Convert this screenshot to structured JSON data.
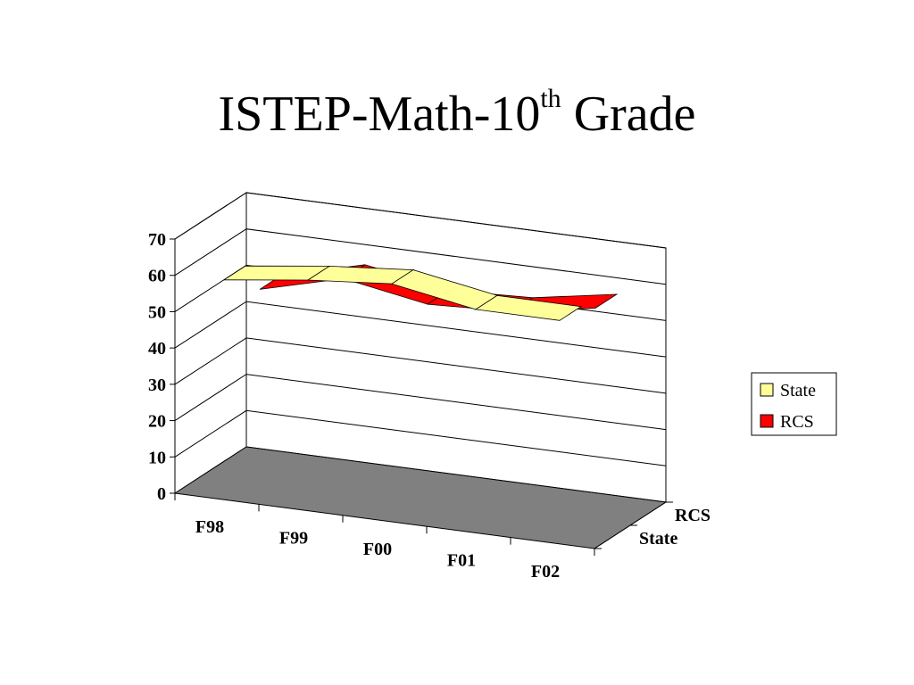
{
  "slide": {
    "title_main": "ISTEP-Math-10",
    "title_sup": "th",
    "title_tail": " Grade"
  },
  "chart_data": {
    "type": "line",
    "style": "3d-ribbon",
    "title": "ISTEP-Math-10th Grade",
    "categories": [
      "F98",
      "F99",
      "F00",
      "F01",
      "F02"
    ],
    "series": [
      {
        "name": "State",
        "values": [
          59,
          62,
          64,
          60,
          60
        ],
        "color": "#FFFF99"
      },
      {
        "name": "RCS",
        "values": [
          50,
          56,
          52,
          53,
          57
        ],
        "color": "#FF0000"
      }
    ],
    "depth_labels": [
      "RCS",
      "State"
    ],
    "y_ticks": [
      0,
      10,
      20,
      30,
      40,
      50,
      60,
      70
    ],
    "ylim": [
      0,
      70
    ],
    "grid": true,
    "floor_color": "#808080",
    "legend": {
      "position": "right",
      "items": [
        "State",
        "RCS"
      ]
    }
  }
}
